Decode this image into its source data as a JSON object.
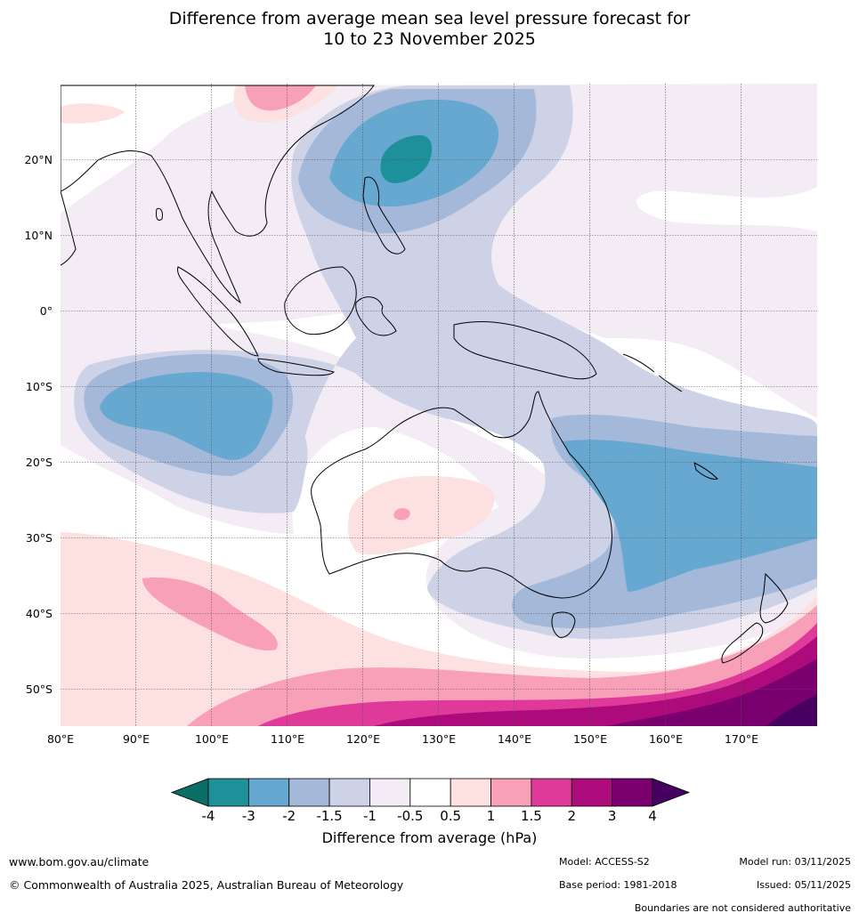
{
  "title": {
    "line1": "Difference from average mean sea level pressure forecast for",
    "line2": "10 to 23 November 2025"
  },
  "map": {
    "longitude_labels": [
      "80°E",
      "90°E",
      "100°E",
      "110°E",
      "120°E",
      "130°E",
      "140°E",
      "150°E",
      "160°E",
      "170°E"
    ],
    "latitude_labels": [
      "20°N",
      "10°N",
      "0°",
      "10°S",
      "20°S",
      "30°S",
      "40°S",
      "50°S"
    ],
    "region": "Indian Ocean, Maritime Continent, Australia, New Zealand, Western Pacific"
  },
  "colorbar": {
    "title": "Difference from average (hPa)",
    "tick_labels": [
      "-4",
      "-3",
      "-2",
      "-1.5",
      "-1",
      "-0.5",
      "0.5",
      "1",
      "1.5",
      "2",
      "3",
      "4"
    ],
    "bins": [
      {
        "range": "< -4",
        "color": "#0b6e64"
      },
      {
        "range": "-4 to -3",
        "color": "#1e9099"
      },
      {
        "range": "-3 to -2",
        "color": "#66a8d0"
      },
      {
        "range": "-2 to -1.5",
        "color": "#a4b8d9"
      },
      {
        "range": "-1.5 to -1",
        "color": "#cdd2e6"
      },
      {
        "range": "-1 to -0.5",
        "color": "#f3ecf5"
      },
      {
        "range": "-0.5 to 0.5",
        "color": "#ffffff"
      },
      {
        "range": "0.5 to 1",
        "color": "#fde0e0"
      },
      {
        "range": "1 to 1.5",
        "color": "#f9a0b9"
      },
      {
        "range": "1.5 to 2",
        "color": "#df3a9a"
      },
      {
        "range": "2 to 3",
        "color": "#ad0a7c"
      },
      {
        "range": "3 to 4",
        "color": "#7b006f"
      },
      {
        "range": "> 4",
        "color": "#470060"
      }
    ]
  },
  "footer": {
    "url": "www.bom.gov.au/climate",
    "copyright": "© Commonwealth of Australia 2025, Australian Bureau of Meteorology",
    "model": "Model: ACCESS-S2",
    "base_period": "Base period: 1981-2018",
    "model_run": "Model run: 03/11/2025",
    "issued": "Issued: 05/11/2025",
    "boundaries": "Boundaries are not considered authoritative"
  }
}
